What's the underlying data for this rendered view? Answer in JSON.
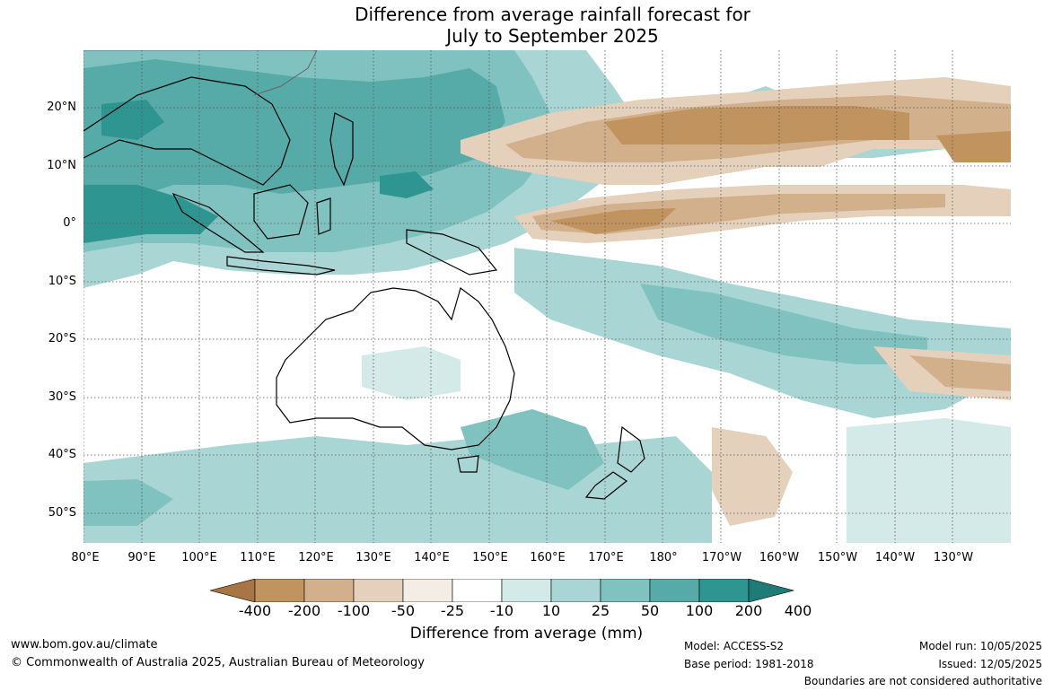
{
  "title": {
    "line1": "Difference from average rainfall forecast for",
    "line2": "July to September 2025"
  },
  "map": {
    "lat_labels": [
      "20°N",
      "10°N",
      "0°",
      "10°S",
      "20°S",
      "30°S",
      "40°S",
      "50°S"
    ],
    "lon_labels": [
      "80°E",
      "90°E",
      "100°E",
      "110°E",
      "120°E",
      "130°E",
      "140°E",
      "150°E",
      "160°E",
      "170°E",
      "180°",
      "170°W",
      "160°W",
      "150°W",
      "140°W",
      "130°W"
    ]
  },
  "legend": {
    "ticks": [
      "-400",
      "-200",
      "-100",
      "-50",
      "-25",
      "-10",
      "10",
      "25",
      "50",
      "100",
      "200",
      "400"
    ],
    "colors": [
      "#a87545",
      "#c0935f",
      "#d2b08b",
      "#e4d0bb",
      "#f3ede6",
      "#ffffff",
      "#d4eae8",
      "#a9d6d4",
      "#80c2bf",
      "#56aba8",
      "#2e9591",
      "#1e7b78"
    ],
    "label": "Difference from average (mm)"
  },
  "footer": {
    "url": "www.bom.gov.au/climate",
    "copyright": "© Commonwealth of Australia 2025, Australian Bureau of Meteorology",
    "model": "Model: ACCESS-S2",
    "base_period": "Base period: 1981-2018",
    "model_run": "Model run: 10/05/2025",
    "issued": "Issued: 12/05/2025",
    "disclaimer": "Boundaries are not considered authoritative"
  }
}
